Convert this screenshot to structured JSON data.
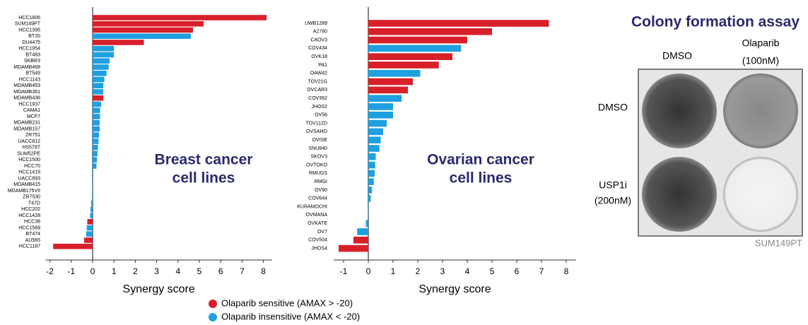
{
  "chart_data": [
    {
      "type": "hbar",
      "annotation": [
        "Breast cancer",
        "cell lines"
      ],
      "xlabel": "Synergy score",
      "categories": [
        "HCC1806",
        "SUM149PT",
        "HCC1395",
        "BT20",
        "DU4475",
        "HCC1954",
        "BT483",
        "SKBR3",
        "MDAMB468",
        "BT549",
        "HCC1143",
        "MDAMB453",
        "MDAMB361",
        "MDAMB436",
        "HCC1937",
        "CAMA1",
        "MCF7",
        "MDAMB231",
        "MDAMB157",
        "ZR751",
        "UACC812",
        "HS578T",
        "SUM52PE",
        "HCC1500",
        "HCC70",
        "HCC1419",
        "UACC893",
        "MDAMB415",
        "MDAMB175VII",
        "ZR7530",
        "T47D",
        "HCC202",
        "HCC1428",
        "HCC38",
        "HCC1569",
        "BT474",
        "AU565",
        "HCC1187"
      ],
      "values": [
        8.15,
        5.2,
        4.7,
        4.6,
        2.4,
        1.0,
        1.0,
        0.8,
        0.75,
        0.65,
        0.55,
        0.5,
        0.5,
        0.5,
        0.4,
        0.35,
        0.35,
        0.33,
        0.33,
        0.3,
        0.28,
        0.25,
        0.23,
        0.2,
        0.18,
        0.03,
        0.02,
        0.01,
        -0.02,
        -0.03,
        -0.07,
        -0.1,
        -0.12,
        -0.25,
        -0.28,
        -0.3,
        -0.4,
        -1.85
      ],
      "groups": [
        0,
        0,
        0,
        1,
        0,
        1,
        1,
        1,
        1,
        1,
        1,
        1,
        1,
        0,
        1,
        1,
        1,
        1,
        1,
        1,
        1,
        1,
        1,
        1,
        1,
        1,
        1,
        1,
        1,
        1,
        1,
        1,
        1,
        0,
        1,
        1,
        0,
        0
      ],
      "xlim": [
        -2.2,
        8.4
      ],
      "xticks": [
        -2,
        -1,
        0,
        1,
        2,
        3,
        4,
        5,
        6,
        7,
        8
      ]
    },
    {
      "type": "hbar",
      "annotation": [
        "Ovarian cancer",
        "cell lines"
      ],
      "xlabel": "Synergy score",
      "categories": [
        "UWB1289",
        "A2780",
        "CAOV3",
        "COV434",
        "OVK18",
        "PA1",
        "OAW42",
        "TOV21G",
        "OVCAR3",
        "COV362",
        "JHOS2",
        "OV56",
        "TOV112D",
        "OVSAHO",
        "OVISE",
        "SNU840",
        "SKOV3",
        "OVTOKO",
        "RMUGS",
        "RMGI",
        "OV90",
        "COV644",
        "KURAMOCHI",
        "OVMANA",
        "OVKATE",
        "OV7",
        "COV504",
        "JHOS4"
      ],
      "values": [
        7.3,
        5.0,
        4.0,
        3.75,
        3.4,
        2.85,
        2.1,
        1.8,
        1.6,
        1.35,
        1.0,
        1.0,
        0.75,
        0.6,
        0.5,
        0.45,
        0.3,
        0.28,
        0.26,
        0.22,
        0.15,
        0.1,
        0.02,
        -0.02,
        -0.1,
        -0.45,
        -0.6,
        -1.2
      ],
      "groups": [
        0,
        0,
        0,
        1,
        0,
        0,
        1,
        0,
        0,
        1,
        1,
        1,
        1,
        1,
        1,
        1,
        1,
        1,
        1,
        1,
        1,
        1,
        1,
        1,
        1,
        1,
        0,
        0
      ],
      "xlim": [
        -1.4,
        8.4
      ],
      "xticks": [
        -1,
        0,
        1,
        2,
        3,
        4,
        5,
        6,
        7,
        8
      ]
    }
  ],
  "legend": [
    {
      "name": "Olaparib sensitive (AMAX > -20)",
      "color": "#d7202a"
    },
    {
      "name": "Olaparib insensitive (AMAX < -20)",
      "color": "#1fa0e0"
    }
  ],
  "assay": {
    "title": "Colony formation assay",
    "columns": [
      [
        "DMSO"
      ],
      [
        "Olaparib",
        "(100nM)"
      ]
    ],
    "rows": [
      [
        "DMSO"
      ],
      [
        "USP1i",
        "(200nM)"
      ]
    ],
    "caption": "SUM149PT"
  }
}
